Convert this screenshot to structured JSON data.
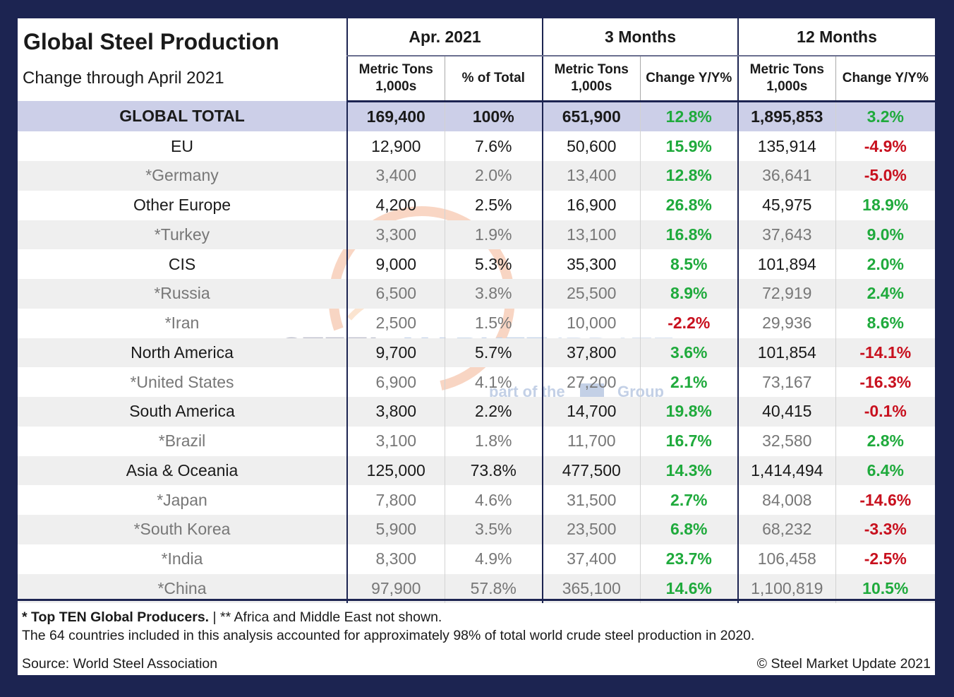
{
  "header": {
    "title": "Global Steel Production",
    "subtitle": "Change through April 2021",
    "groups": [
      "Apr. 2021",
      "3 Months",
      "12 Months"
    ],
    "subcolumns": [
      [
        "Metric Tons",
        "1,000s"
      ],
      [
        "% of Total"
      ],
      [
        "Metric Tons",
        "1,000s"
      ],
      [
        "Change Y/Y%"
      ],
      [
        "Metric Tons",
        "1,000s"
      ],
      [
        "Change Y/Y%"
      ]
    ]
  },
  "chart_data": {
    "type": "table",
    "title": "Global Steel Production",
    "subtitle": "Change through April 2021",
    "columns": [
      "",
      "Apr. 2021 Metric Tons 1,000s",
      "Apr. 2021 % of Total",
      "3 Months Metric Tons 1,000s",
      "3 Months Change Y/Y%",
      "12 Months Metric Tons 1,000s",
      "12 Months Change Y/Y%"
    ],
    "rows": [
      {
        "region": "GLOBAL TOTAL",
        "apr_tons": "169,400",
        "apr_pct": "100%",
        "m3_tons": "651,900",
        "m3_chg": "12.8%",
        "m12_tons": "1,895,853",
        "m12_chg": "3.2%"
      },
      {
        "region": "EU",
        "apr_tons": "12,900",
        "apr_pct": "7.6%",
        "m3_tons": "50,600",
        "m3_chg": "15.9%",
        "m12_tons": "135,914",
        "m12_chg": "-4.9%"
      },
      {
        "region": "*Germany",
        "apr_tons": "3,400",
        "apr_pct": "2.0%",
        "m3_tons": "13,400",
        "m3_chg": "12.8%",
        "m12_tons": "36,641",
        "m12_chg": "-5.0%"
      },
      {
        "region": "Other Europe",
        "apr_tons": "4,200",
        "apr_pct": "2.5%",
        "m3_tons": "16,900",
        "m3_chg": "26.8%",
        "m12_tons": "45,975",
        "m12_chg": "18.9%"
      },
      {
        "region": "*Turkey",
        "apr_tons": "3,300",
        "apr_pct": "1.9%",
        "m3_tons": "13,100",
        "m3_chg": "16.8%",
        "m12_tons": "37,643",
        "m12_chg": "9.0%"
      },
      {
        "region": "CIS",
        "apr_tons": "9,000",
        "apr_pct": "5.3%",
        "m3_tons": "35,300",
        "m3_chg": "8.5%",
        "m12_tons": "101,894",
        "m12_chg": "2.0%"
      },
      {
        "region": "*Russia",
        "apr_tons": "6,500",
        "apr_pct": "3.8%",
        "m3_tons": "25,500",
        "m3_chg": "8.9%",
        "m12_tons": "72,919",
        "m12_chg": "2.4%"
      },
      {
        "region": "*Iran",
        "apr_tons": "2,500",
        "apr_pct": "1.5%",
        "m3_tons": "10,000",
        "m3_chg": "-2.2%",
        "m12_tons": "29,936",
        "m12_chg": "8.6%"
      },
      {
        "region": "North America",
        "apr_tons": "9,700",
        "apr_pct": "5.7%",
        "m3_tons": "37,800",
        "m3_chg": "3.6%",
        "m12_tons": "101,854",
        "m12_chg": "-14.1%"
      },
      {
        "region": "*United States",
        "apr_tons": "6,900",
        "apr_pct": "4.1%",
        "m3_tons": "27,200",
        "m3_chg": "2.1%",
        "m12_tons": "73,167",
        "m12_chg": "-16.3%"
      },
      {
        "region": "South America",
        "apr_tons": "3,800",
        "apr_pct": "2.2%",
        "m3_tons": "14,700",
        "m3_chg": "19.8%",
        "m12_tons": "40,415",
        "m12_chg": "-0.1%"
      },
      {
        "region": "*Brazil",
        "apr_tons": "3,100",
        "apr_pct": "1.8%",
        "m3_tons": "11,700",
        "m3_chg": "16.7%",
        "m12_tons": "32,580",
        "m12_chg": "2.8%"
      },
      {
        "region": "Asia & Oceania",
        "apr_tons": "125,000",
        "apr_pct": "73.8%",
        "m3_tons": "477,500",
        "m3_chg": "14.3%",
        "m12_tons": "1,414,494",
        "m12_chg": "6.4%"
      },
      {
        "region": "*Japan",
        "apr_tons": "7,800",
        "apr_pct": "4.6%",
        "m3_tons": "31,500",
        "m3_chg": "2.7%",
        "m12_tons": "84,008",
        "m12_chg": "-14.6%"
      },
      {
        "region": "*South Korea",
        "apr_tons": "5,900",
        "apr_pct": "3.5%",
        "m3_tons": "23,500",
        "m3_chg": "6.8%",
        "m12_tons": "68,232",
        "m12_chg": "-3.3%"
      },
      {
        "region": "*India",
        "apr_tons": "8,300",
        "apr_pct": "4.9%",
        "m3_tons": "37,400",
        "m3_chg": "23.7%",
        "m12_tons": "106,458",
        "m12_chg": "-2.5%"
      },
      {
        "region": "*China",
        "apr_tons": "97,900",
        "apr_pct": "57.8%",
        "m3_tons": "365,100",
        "m3_chg": "14.6%",
        "m12_tons": "1,100,819",
        "m12_chg": "10.5%"
      }
    ]
  },
  "footer": {
    "note_bold": "* Top TEN Global Producers.",
    "note_rest": " | ** Africa and Middle East not shown.",
    "coverage": "The 64 countries included in this analysis accounted for approximately 98% of total world crude steel production in 2020.",
    "source": "Source: World Steel Association",
    "copyright": "© Steel Market Update 2021"
  },
  "watermark": {
    "brand_a": "STEEL",
    "brand_b": "MARKET",
    "brand_c": "UPDATE",
    "tag_a": "part of the",
    "tag_b": "Group"
  },
  "colors": {
    "frame": "#1c2451",
    "total_row": "#cccfe8",
    "positive": "#1faa3c",
    "negative": "#c8101e",
    "alt_row": "#efefef"
  }
}
